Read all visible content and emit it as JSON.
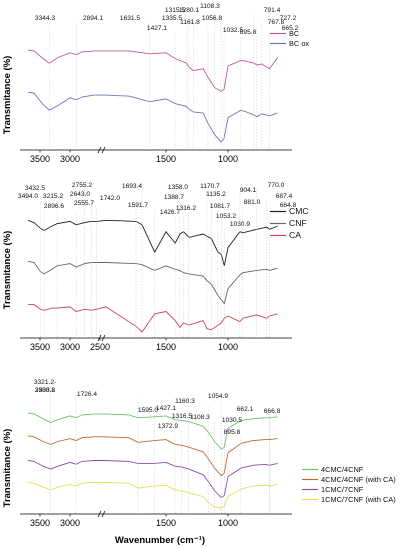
{
  "x_axis_label": "Wavenumber (cm⁻¹)",
  "chart_data": [
    {
      "type": "line",
      "title": "",
      "ylabel": "Transmitance (%)",
      "xlabel": "",
      "x_scale": "broken",
      "x_ticks": [
        "3500",
        "3000",
        "1500",
        "1000"
      ],
      "legend_position": "top-right",
      "series": [
        {
          "name": "BC",
          "color": "#c0589a",
          "x": [
            3700,
            3600,
            3450,
            3344,
            3200,
            3000,
            2894,
            2800,
            2600,
            2000,
            1800,
            1631,
            1500,
            1427,
            1335,
            1315,
            1280,
            1200,
            1161,
            1108,
            1056,
            1032,
            1000,
            896,
            850,
            791,
            768,
            727,
            665,
            600
          ],
          "y": [
            1.0,
            0.99,
            0.91,
            0.86,
            0.92,
            0.97,
            0.95,
            0.98,
            0.99,
            0.99,
            0.99,
            0.96,
            0.97,
            0.91,
            0.86,
            0.82,
            0.78,
            0.8,
            0.71,
            0.6,
            0.56,
            0.58,
            0.83,
            0.89,
            0.88,
            0.86,
            0.84,
            0.85,
            0.8,
            0.92
          ]
        },
        {
          "name": "BC ox",
          "color": "#6a76b4",
          "x": [
            3700,
            3600,
            3450,
            3344,
            3200,
            3000,
            2894,
            2800,
            2600,
            2000,
            1800,
            1631,
            1500,
            1427,
            1335,
            1315,
            1280,
            1200,
            1161,
            1108,
            1056,
            1032,
            1000,
            896,
            850,
            791,
            768,
            727,
            665,
            600
          ],
          "y": [
            0.55,
            0.54,
            0.42,
            0.36,
            0.41,
            0.49,
            0.47,
            0.5,
            0.52,
            0.52,
            0.51,
            0.45,
            0.48,
            0.43,
            0.4,
            0.37,
            0.34,
            0.33,
            0.22,
            0.1,
            0.02,
            0.06,
            0.28,
            0.36,
            0.34,
            0.31,
            0.29,
            0.32,
            0.3,
            0.33
          ]
        }
      ],
      "peak_labels": [
        "3344.3",
        "2894.1",
        "1631.5",
        "1427.1",
        "1335.5",
        "1315.5",
        "1280.1",
        "1161.8",
        "1108.3",
        "1056.8",
        "1032.5",
        "895.8",
        "791.4",
        "767.8",
        "727.2",
        "665.2"
      ]
    },
    {
      "type": "line",
      "title": "",
      "ylabel": "Transmitance (%)",
      "xlabel": "",
      "x_scale": "broken",
      "x_ticks": [
        "3500",
        "3000",
        "2500",
        "1500",
        "1000"
      ],
      "legend_position": "top-right",
      "series": [
        {
          "name": "CMC",
          "color": "#222222",
          "x": [
            3700,
            3600,
            3494,
            3432,
            3300,
            3215,
            3000,
            2896,
            2755,
            2643,
            2555,
            2400,
            1742,
            1693,
            1591,
            1500,
            1426,
            1388,
            1358,
            1316,
            1200,
            1170,
            1135,
            1081,
            1053,
            1030,
            1000,
            904,
            881,
            770,
            687,
            665,
            600
          ],
          "y": [
            0.98,
            0.96,
            0.91,
            0.89,
            0.93,
            0.95,
            0.97,
            0.94,
            0.96,
            0.97,
            0.97,
            0.98,
            0.97,
            0.94,
            0.7,
            0.88,
            0.78,
            0.86,
            0.88,
            0.83,
            0.86,
            0.84,
            0.82,
            0.7,
            0.68,
            0.58,
            0.74,
            0.88,
            0.87,
            0.9,
            0.92,
            0.9,
            0.93
          ]
        },
        {
          "name": "CNF",
          "color": "#666666",
          "x": [
            3700,
            3600,
            3494,
            3432,
            3300,
            3215,
            3000,
            2896,
            2755,
            2643,
            2555,
            2400,
            1742,
            1693,
            1591,
            1500,
            1426,
            1388,
            1358,
            1316,
            1200,
            1170,
            1135,
            1081,
            1053,
            1030,
            1000,
            904,
            881,
            770,
            687,
            665,
            600
          ],
          "y": [
            0.62,
            0.61,
            0.53,
            0.51,
            0.55,
            0.58,
            0.6,
            0.57,
            0.6,
            0.61,
            0.61,
            0.61,
            0.6,
            0.59,
            0.54,
            0.58,
            0.55,
            0.54,
            0.52,
            0.51,
            0.49,
            0.45,
            0.42,
            0.32,
            0.28,
            0.25,
            0.38,
            0.5,
            0.52,
            0.54,
            0.55,
            0.54,
            0.56
          ]
        },
        {
          "name": "CA",
          "color": "#c8464f",
          "x": [
            3700,
            3600,
            3494,
            3432,
            3300,
            3215,
            3000,
            2896,
            2755,
            2643,
            2555,
            2400,
            1742,
            1693,
            1591,
            1500,
            1426,
            1388,
            1358,
            1316,
            1200,
            1170,
            1135,
            1081,
            1053,
            1030,
            1000,
            904,
            881,
            770,
            687,
            665,
            600
          ],
          "y": [
            0.24,
            0.24,
            0.2,
            0.19,
            0.21,
            0.21,
            0.22,
            0.18,
            0.2,
            0.19,
            0.2,
            0.22,
            0.05,
            0.0,
            0.16,
            0.18,
            0.1,
            0.04,
            0.08,
            0.06,
            0.1,
            0.03,
            0.02,
            0.06,
            0.08,
            0.12,
            0.14,
            0.09,
            0.12,
            0.15,
            0.12,
            0.14,
            0.16
          ]
        }
      ],
      "peak_labels": [
        "3494.0",
        "3432.5",
        "3215.2",
        "2896.6",
        "2755.2",
        "2643.0",
        "2555.7",
        "1742.0",
        "1693.4",
        "1591.7",
        "1426.7",
        "1388.7",
        "1358.0",
        "1316.2",
        "1170.7",
        "1135.2",
        "1081.7",
        "1053.2",
        "1030.9",
        "904.1",
        "881.0",
        "770.0",
        "687.4",
        "664.8"
      ]
    },
    {
      "type": "line",
      "title": "",
      "ylabel": "Transmitance (%)",
      "xlabel": "Wavenumber (cm⁻¹)",
      "x_scale": "broken",
      "x_ticks": [
        "3500",
        "3000",
        "1500",
        "1000"
      ],
      "legend_position": "top-right",
      "series": [
        {
          "name": "4CMC/4CNF",
          "color": "#6cc46f",
          "x": [
            3700,
            3600,
            3450,
            3321,
            3200,
            3000,
            2900,
            2800,
            2600,
            2000,
            1800,
            1726,
            1595,
            1500,
            1427,
            1372,
            1316,
            1200,
            1160,
            1108,
            1054,
            1030,
            1000,
            895,
            800,
            700,
            666,
            600
          ],
          "y": [
            1.0,
            0.99,
            0.94,
            0.9,
            0.93,
            0.97,
            0.95,
            0.98,
            0.99,
            0.99,
            0.98,
            0.95,
            0.96,
            0.97,
            0.93,
            0.92,
            0.91,
            0.86,
            0.8,
            0.7,
            0.62,
            0.64,
            0.84,
            0.92,
            0.94,
            0.95,
            0.95,
            0.96
          ]
        },
        {
          "name": "4CMC/4CNF (with CA)",
          "color": "#c06a30",
          "x": [
            3700,
            3600,
            3450,
            3321,
            3200,
            3000,
            2900,
            2800,
            2600,
            2000,
            1800,
            1726,
            1595,
            1500,
            1427,
            1372,
            1316,
            1200,
            1160,
            1108,
            1054,
            1030,
            1000,
            895,
            800,
            700,
            666,
            600
          ],
          "y": [
            0.76,
            0.75,
            0.7,
            0.67,
            0.7,
            0.73,
            0.71,
            0.74,
            0.75,
            0.75,
            0.74,
            0.69,
            0.71,
            0.72,
            0.67,
            0.66,
            0.64,
            0.59,
            0.52,
            0.42,
            0.34,
            0.37,
            0.58,
            0.68,
            0.71,
            0.72,
            0.72,
            0.73
          ]
        },
        {
          "name": "1CMC/7CNF",
          "color": "#8c4fa6",
          "x": [
            3700,
            3600,
            3450,
            3321,
            3200,
            3000,
            2900,
            2800,
            2600,
            2000,
            1800,
            1726,
            1595,
            1500,
            1427,
            1372,
            1316,
            1200,
            1160,
            1108,
            1054,
            1030,
            1000,
            895,
            800,
            700,
            666,
            600
          ],
          "y": [
            0.5,
            0.49,
            0.44,
            0.41,
            0.44,
            0.48,
            0.46,
            0.49,
            0.5,
            0.5,
            0.49,
            0.47,
            0.47,
            0.48,
            0.44,
            0.43,
            0.41,
            0.35,
            0.28,
            0.18,
            0.11,
            0.13,
            0.33,
            0.42,
            0.45,
            0.46,
            0.45,
            0.47
          ]
        },
        {
          "name": "1CMC/7CNF (with CA)",
          "color": "#e3e052",
          "x": [
            3700,
            3600,
            3450,
            3321,
            3200,
            3000,
            2900,
            2800,
            2600,
            2000,
            1800,
            1726,
            1595,
            1500,
            1427,
            1372,
            1316,
            1200,
            1160,
            1108,
            1054,
            1030,
            1000,
            895,
            800,
            700,
            666,
            600
          ],
          "y": [
            0.27,
            0.26,
            0.22,
            0.19,
            0.22,
            0.25,
            0.23,
            0.26,
            0.27,
            0.27,
            0.26,
            0.21,
            0.23,
            0.24,
            0.19,
            0.18,
            0.16,
            0.12,
            0.06,
            0.01,
            0.0,
            0.02,
            0.12,
            0.2,
            0.23,
            0.24,
            0.23,
            0.25
          ]
        }
      ],
      "peak_labels": [
        "3321.2-\n3333.2",
        "2900.8",
        "1726.4",
        "1595.0",
        "1427.1",
        "1372.9",
        "1316.5",
        "1160.3",
        "1108.3",
        "1054.9",
        "1030.5",
        "895.8",
        "662.1",
        "666.8"
      ]
    }
  ]
}
